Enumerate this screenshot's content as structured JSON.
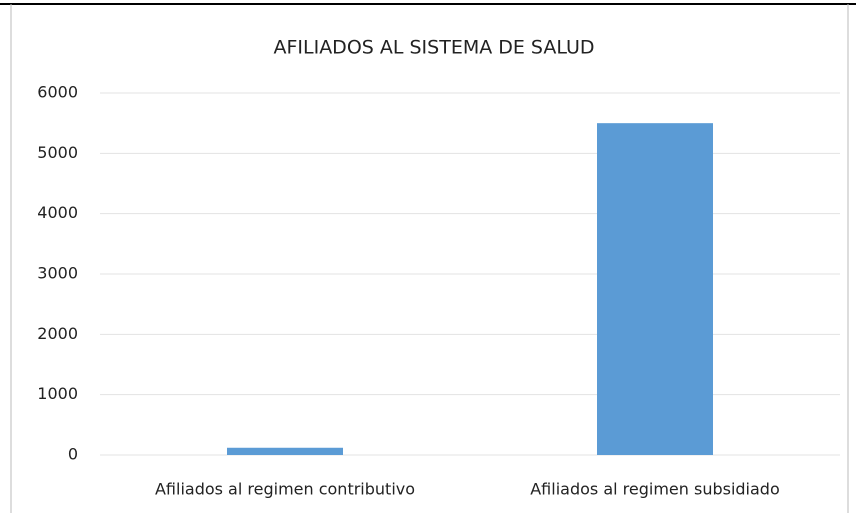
{
  "chart_data": {
    "type": "bar",
    "title": "AFILIADOS AL SISTEMA DE SALUD",
    "categories": [
      "Afiliados al regimen contributivo",
      "Afiliados al regimen subsidiado"
    ],
    "values": [
      120,
      5500
    ],
    "color": "#5b9bd5",
    "ylim": [
      0,
      6000
    ],
    "yticks": [
      0,
      1000,
      2000,
      3000,
      4000,
      5000,
      6000
    ],
    "grid": true
  }
}
